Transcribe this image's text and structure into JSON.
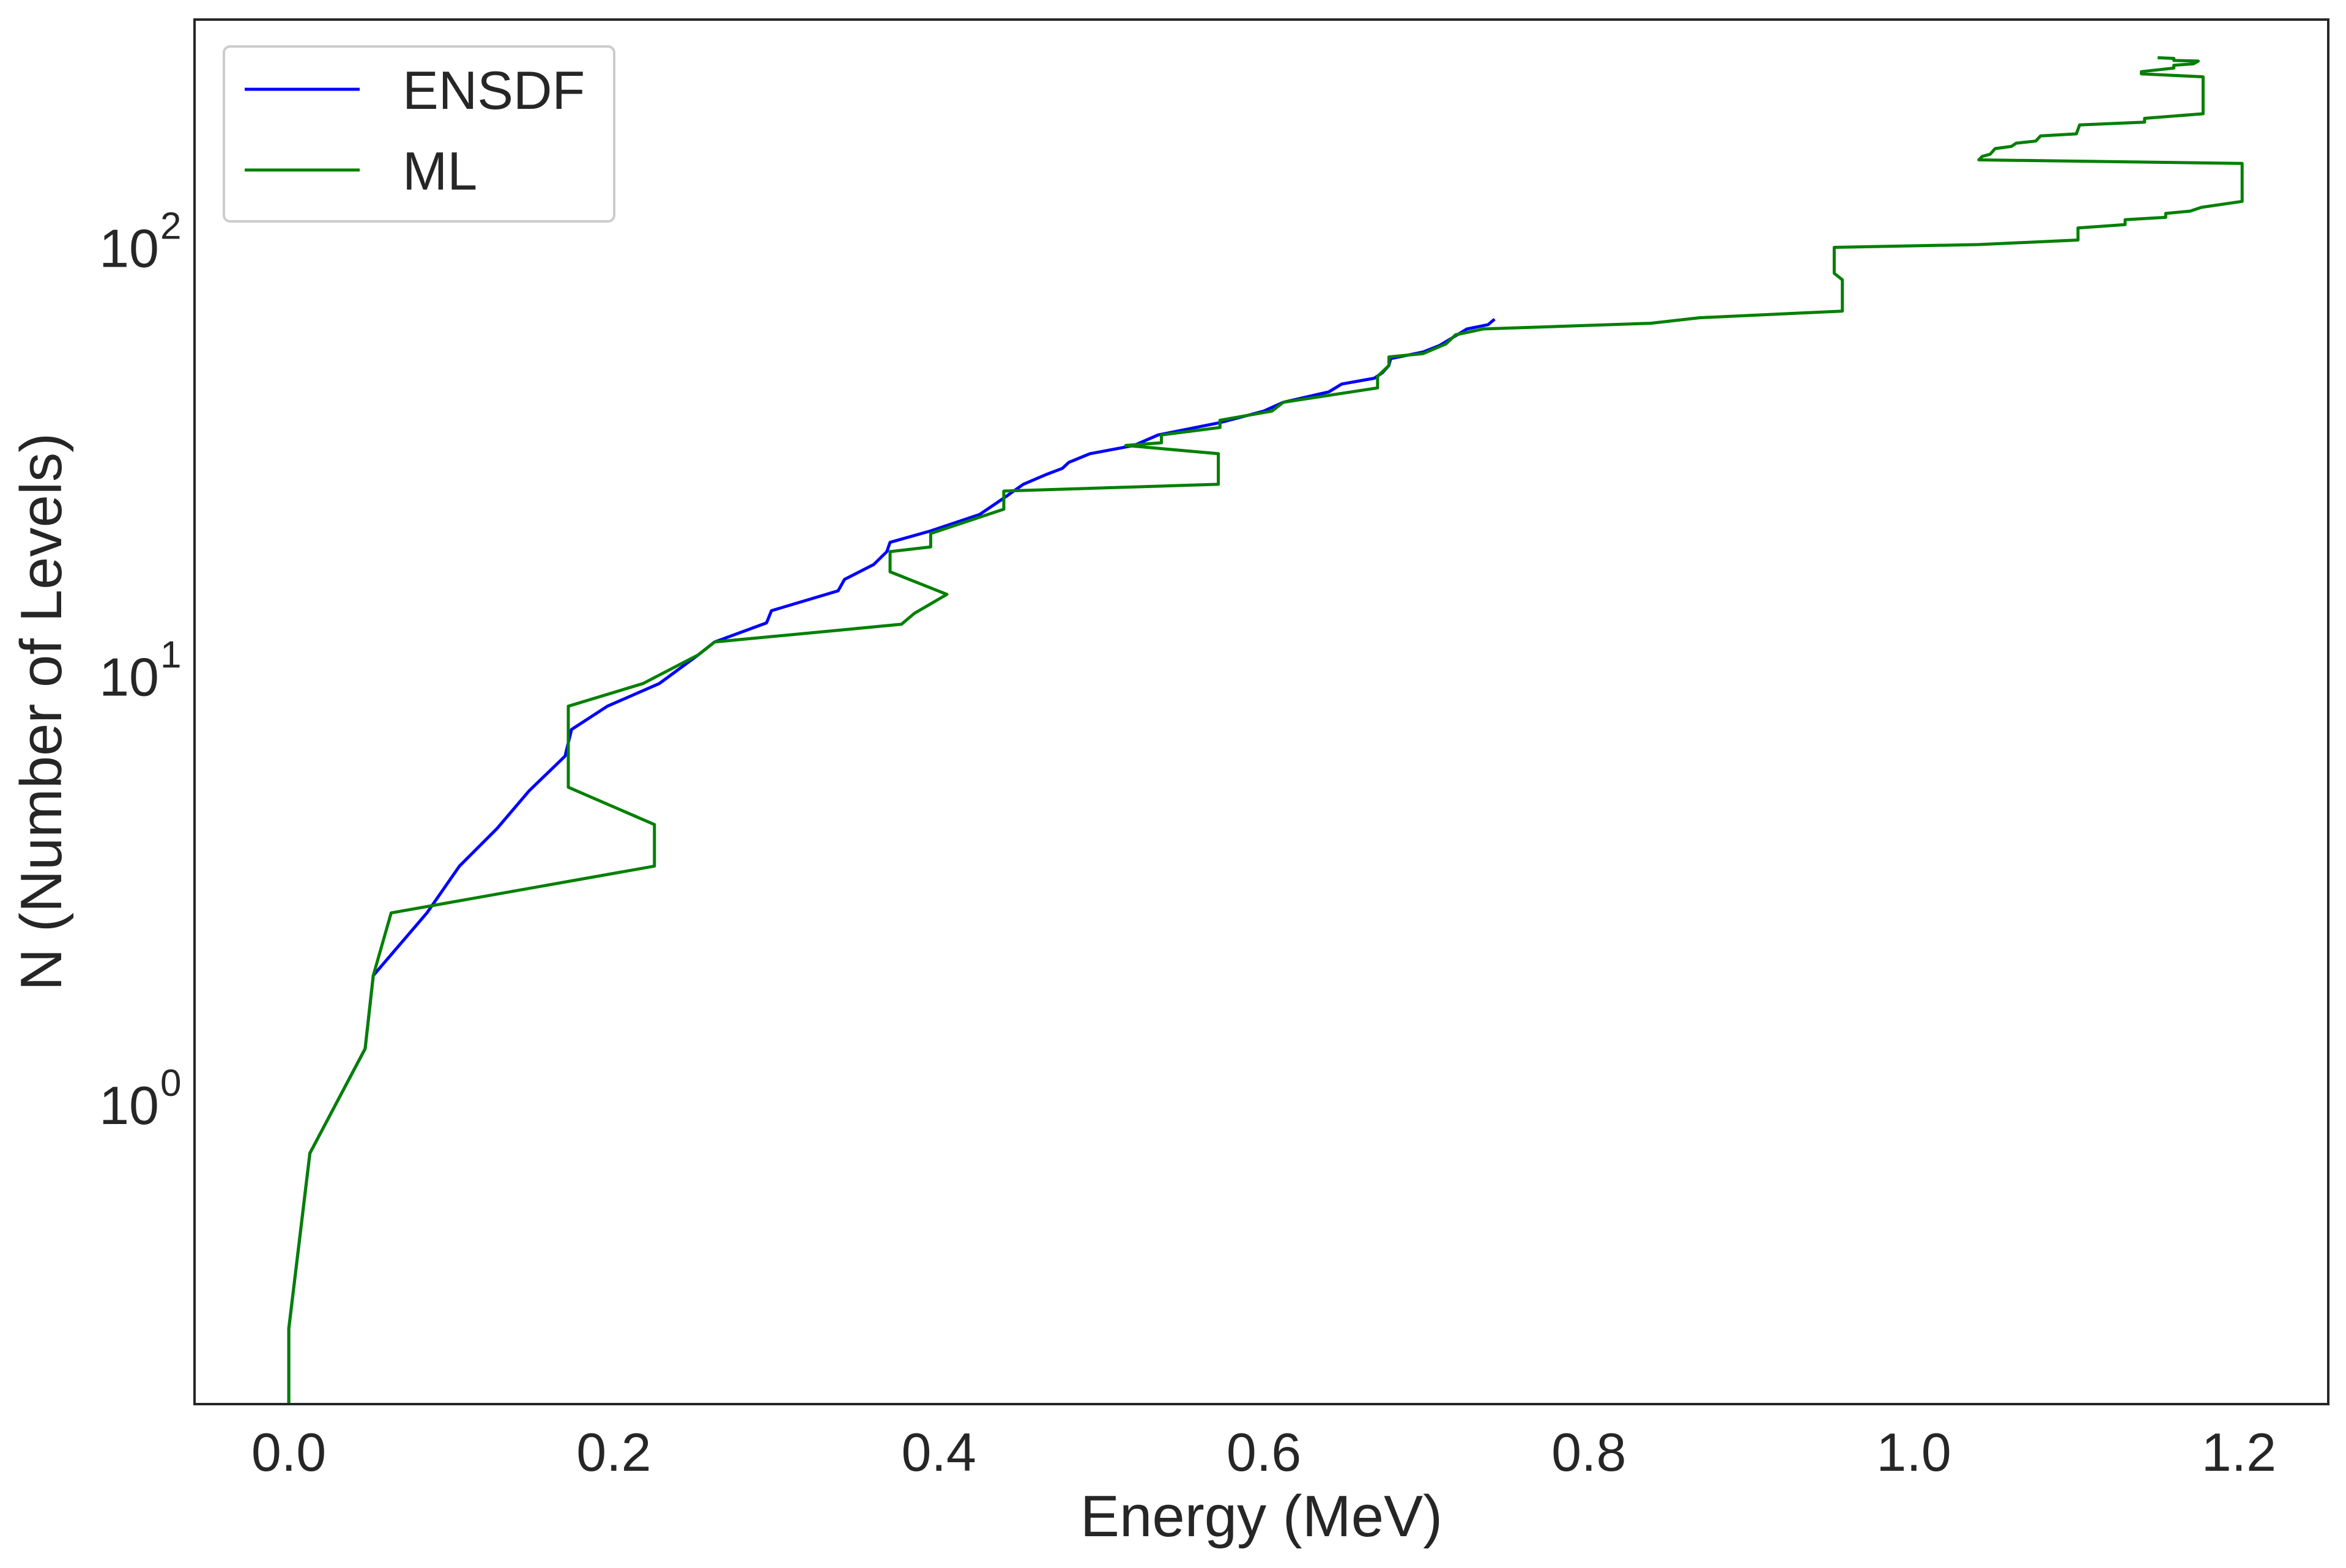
{
  "chart_data": {
    "type": "line",
    "title": "",
    "xlabel": "Energy (MeV)",
    "ylabel": "N (Number of Levels)",
    "xscale": "linear",
    "yscale": "log",
    "xlim": [
      -0.058,
      1.255
    ],
    "ylim": [
      0.2,
      340
    ],
    "x_ticks": [
      0.0,
      0.2,
      0.4,
      0.6,
      0.8,
      1.0,
      1.2
    ],
    "x_tick_labels": [
      "0.0",
      "0.2",
      "0.4",
      "0.6",
      "0.8",
      "1.0",
      "1.2"
    ],
    "y_ticks": [
      1,
      10,
      100
    ],
    "y_tick_labels": [
      {
        "base": "10",
        "exp": "0"
      },
      {
        "base": "10",
        "exp": "1"
      },
      {
        "base": "10",
        "exp": "2"
      }
    ],
    "grid": false,
    "legend_position": "top-left",
    "series": [
      {
        "name": "ENSDF",
        "color": "#0000ff",
        "points": [
          [
            0.0,
            0.2
          ],
          [
            0.0,
            0.3
          ],
          [
            0.013,
            0.77
          ],
          [
            0.047,
            1.35
          ],
          [
            0.052,
            2.0
          ],
          [
            0.085,
            2.8
          ],
          [
            0.105,
            3.6
          ],
          [
            0.128,
            4.4
          ],
          [
            0.148,
            5.4
          ],
          [
            0.17,
            6.5
          ],
          [
            0.174,
            7.5
          ],
          [
            0.196,
            8.5
          ],
          [
            0.228,
            9.6
          ],
          [
            0.252,
            11.2
          ],
          [
            0.262,
            12.0
          ],
          [
            0.294,
            13.3
          ],
          [
            0.297,
            14.2
          ],
          [
            0.338,
            15.8
          ],
          [
            0.342,
            16.8
          ],
          [
            0.36,
            18.2
          ],
          [
            0.368,
            19.5
          ],
          [
            0.37,
            20.5
          ],
          [
            0.395,
            21.8
          ],
          [
            0.425,
            23.8
          ],
          [
            0.44,
            26.0
          ],
          [
            0.452,
            28.0
          ],
          [
            0.466,
            29.5
          ],
          [
            0.476,
            30.5
          ],
          [
            0.48,
            31.5
          ],
          [
            0.493,
            33.0
          ],
          [
            0.52,
            34.5
          ],
          [
            0.535,
            36.5
          ],
          [
            0.573,
            39.0
          ],
          [
            0.6,
            41.5
          ],
          [
            0.612,
            43.5
          ],
          [
            0.64,
            46.0
          ],
          [
            0.648,
            48.0
          ],
          [
            0.668,
            49.5
          ],
          [
            0.673,
            51.0
          ],
          [
            0.677,
            53.0
          ],
          [
            0.678,
            55.0
          ],
          [
            0.698,
            57.0
          ],
          [
            0.708,
            59.0
          ],
          [
            0.716,
            61.5
          ],
          [
            0.725,
            64.5
          ],
          [
            0.738,
            66.0
          ],
          [
            0.742,
            68.0
          ]
        ]
      },
      {
        "name": "ML",
        "color": "#008000",
        "points": [
          [
            0.0,
            0.2
          ],
          [
            0.0,
            0.3
          ],
          [
            0.013,
            0.77
          ],
          [
            0.047,
            1.35
          ],
          [
            0.052,
            2.0
          ],
          [
            0.063,
            2.8
          ],
          [
            0.225,
            3.6
          ],
          [
            0.225,
            4.5
          ],
          [
            0.172,
            5.5
          ],
          [
            0.172,
            8.5
          ],
          [
            0.218,
            9.6
          ],
          [
            0.252,
            11.2
          ],
          [
            0.262,
            12.0
          ],
          [
            0.377,
            13.2
          ],
          [
            0.385,
            14.0
          ],
          [
            0.405,
            15.5
          ],
          [
            0.37,
            17.5
          ],
          [
            0.37,
            19.5
          ],
          [
            0.395,
            20.0
          ],
          [
            0.395,
            21.5
          ],
          [
            0.44,
            24.5
          ],
          [
            0.44,
            27.0
          ],
          [
            0.572,
            28.0
          ],
          [
            0.572,
            33.0
          ],
          [
            0.515,
            34.5
          ],
          [
            0.537,
            35.0
          ],
          [
            0.537,
            36.5
          ],
          [
            0.573,
            38.0
          ],
          [
            0.573,
            39.5
          ],
          [
            0.605,
            41.5
          ],
          [
            0.612,
            43.5
          ],
          [
            0.67,
            47.0
          ],
          [
            0.67,
            50.0
          ],
          [
            0.677,
            53.0
          ],
          [
            0.677,
            55.5
          ],
          [
            0.698,
            56.5
          ],
          [
            0.712,
            59.5
          ],
          [
            0.718,
            62.5
          ],
          [
            0.735,
            64.5
          ],
          [
            0.838,
            66.5
          ],
          [
            0.868,
            68.5
          ],
          [
            0.956,
            71.0
          ],
          [
            0.956,
            84.0
          ],
          [
            0.951,
            87.0
          ],
          [
            0.951,
            100.0
          ],
          [
            1.04,
            101.5
          ],
          [
            1.101,
            104.0
          ],
          [
            1.101,
            111.0
          ],
          [
            1.13,
            113.0
          ],
          [
            1.13,
            116.0
          ],
          [
            1.155,
            117.5
          ],
          [
            1.155,
            120.0
          ],
          [
            1.17,
            121.5
          ],
          [
            1.177,
            124.0
          ],
          [
            1.202,
            128.0
          ],
          [
            1.202,
            157.0
          ],
          [
            1.04,
            160.0
          ],
          [
            1.042,
            163.0
          ],
          [
            1.047,
            165.0
          ],
          [
            1.05,
            170.0
          ],
          [
            1.06,
            172.0
          ],
          [
            1.063,
            175.0
          ],
          [
            1.075,
            177.0
          ],
          [
            1.078,
            182.0
          ],
          [
            1.1,
            184.0
          ],
          [
            1.102,
            193.0
          ],
          [
            1.142,
            196.0
          ],
          [
            1.142,
            200.0
          ],
          [
            1.178,
            205.0
          ],
          [
            1.178,
            250.0
          ],
          [
            1.14,
            254.0
          ],
          [
            1.14,
            257.0
          ],
          [
            1.16,
            262.0
          ],
          [
            1.16,
            266.0
          ],
          [
            1.172,
            268.0
          ],
          [
            1.175,
            272.0
          ],
          [
            1.16,
            273.0
          ],
          [
            1.16,
            276.0
          ],
          [
            1.15,
            277.0
          ]
        ]
      }
    ]
  }
}
